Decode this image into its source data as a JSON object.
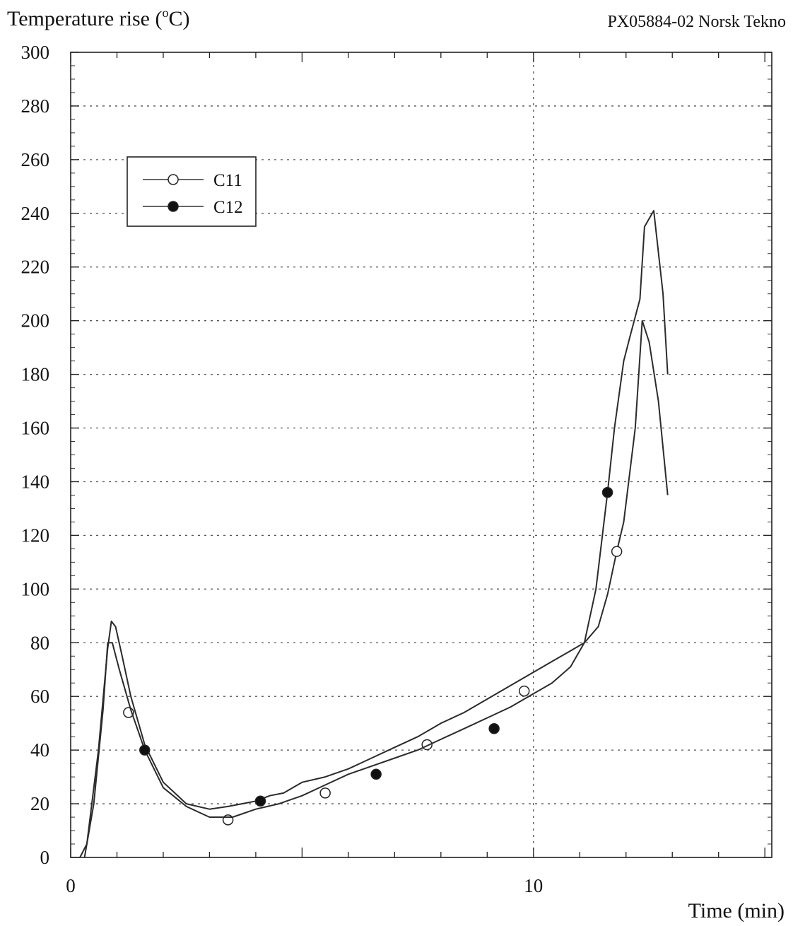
{
  "chart_data": {
    "type": "line",
    "title": "",
    "source_label": "PX05884-02 Norsk Tekno",
    "ylabel_text": "Temperature rise (",
    "ylabel_sup": "o",
    "ylabel_unit": "C)",
    "xlabel": "Time (min)",
    "xlim": [
      0,
      15
    ],
    "ylim": [
      0,
      300
    ],
    "x_ticks": [
      0,
      10
    ],
    "y_ticks": [
      0,
      20,
      40,
      60,
      80,
      100,
      120,
      140,
      160,
      180,
      200,
      220,
      240,
      260,
      280,
      300
    ],
    "grid": true,
    "legend_position": "top-left",
    "series": [
      {
        "name": "C11",
        "marker": "open-circle",
        "x": [
          0.2,
          0.35,
          0.6,
          0.8,
          0.88,
          0.97,
          1.1,
          1.3,
          1.6,
          2.0,
          2.5,
          3.0,
          3.4,
          3.7,
          4.0,
          4.3,
          4.6,
          5.0,
          5.5,
          6.0,
          6.5,
          7.0,
          7.5,
          8.0,
          8.5,
          9.0,
          9.5,
          10.0,
          10.4,
          10.8,
          11.1,
          11.4,
          11.6,
          11.8,
          11.95,
          12.2,
          12.35,
          12.5,
          12.7,
          12.9
        ],
        "y": [
          0,
          5,
          40,
          78,
          88,
          86,
          76,
          60,
          42,
          28,
          20,
          18,
          19,
          20,
          21,
          23,
          24,
          28,
          30,
          33,
          37,
          41,
          45,
          50,
          54,
          59,
          64,
          69,
          73,
          77,
          80,
          86,
          98,
          114,
          125,
          160,
          200,
          192,
          170,
          135
        ],
        "markers_x": [
          1.25,
          3.4,
          5.5,
          7.7,
          9.8,
          11.8
        ],
        "markers_y": [
          54,
          14,
          24,
          42,
          62,
          114
        ]
      },
      {
        "name": "C12",
        "marker": "filled-circle",
        "x": [
          0.3,
          0.5,
          0.7,
          0.8,
          0.9,
          1.05,
          1.3,
          1.6,
          2.0,
          2.5,
          3.0,
          3.5,
          4.0,
          4.5,
          5.0,
          5.5,
          6.0,
          6.5,
          7.0,
          7.5,
          8.0,
          8.5,
          9.0,
          9.5,
          10.0,
          10.4,
          10.8,
          11.1,
          11.35,
          11.6,
          11.75,
          11.95,
          12.1,
          12.3,
          12.4,
          12.6,
          12.8,
          12.9
        ],
        "y": [
          0,
          20,
          55,
          80,
          80,
          70,
          55,
          40,
          26,
          19,
          15,
          15,
          18,
          20,
          23,
          27,
          31,
          34,
          37,
          40,
          44,
          48,
          52,
          56,
          61,
          65,
          71,
          80,
          100,
          136,
          160,
          185,
          195,
          208,
          235,
          241,
          210,
          180
        ],
        "markers_x": [
          1.6,
          4.1,
          6.6,
          9.15,
          11.6
        ],
        "markers_y": [
          40,
          21,
          31,
          48,
          136
        ]
      }
    ]
  }
}
